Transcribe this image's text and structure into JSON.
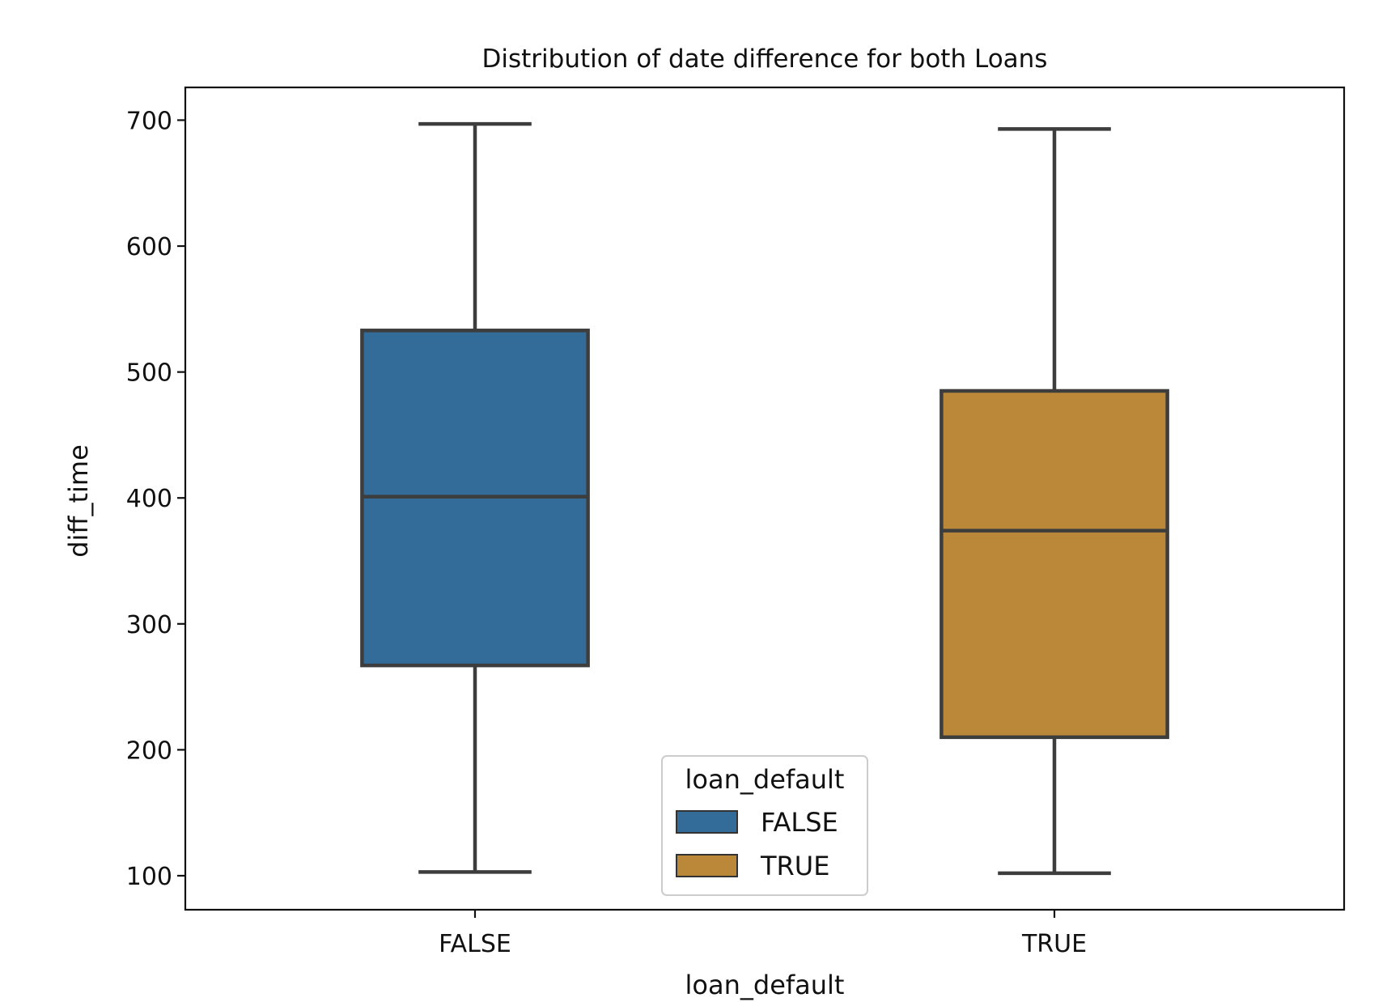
{
  "chart_data": {
    "type": "box",
    "title": "Distribution of date difference for both Loans",
    "xlabel": "loan_default",
    "ylabel": "diff_time",
    "categories": [
      "FALSE",
      "TRUE"
    ],
    "yticks": [
      "100",
      "200",
      "300",
      "400",
      "500",
      "600",
      "700"
    ],
    "ylim": [
      73,
      726
    ],
    "grid": false,
    "series": [
      {
        "name": "FALSE",
        "color": "#336c99",
        "category": "FALSE",
        "whislo": 103,
        "q1": 267,
        "median": 401,
        "q3": 533,
        "whishi": 697
      },
      {
        "name": "TRUE",
        "color": "#bb883a",
        "category": "TRUE",
        "whislo": 102,
        "q1": 210,
        "median": 374,
        "q3": 485,
        "whishi": 693
      }
    ],
    "legend": {
      "title": "loan_default",
      "placement": "lower center",
      "entries": [
        "FALSE",
        "TRUE"
      ]
    }
  }
}
